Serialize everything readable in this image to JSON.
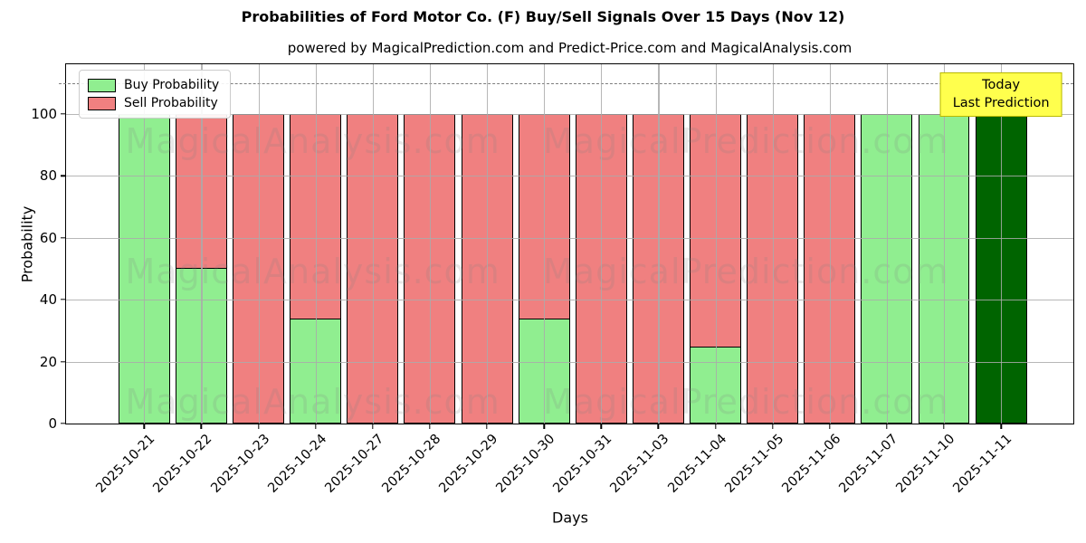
{
  "figure": {
    "title": "Probabilities of Ford Motor Co. (F) Buy/Sell Signals Over 15 Days (Nov 12)",
    "subtitle": "powered by MagicalPrediction.com and Predict-Price.com and MagicalAnalysis.com"
  },
  "legend": {
    "items": [
      {
        "label": "Buy Probability",
        "color": "#90ee90"
      },
      {
        "label": "Sell Probability",
        "color": "#f08080"
      }
    ]
  },
  "annotation_box": {
    "line1": "Today",
    "line2": "Last Prediction"
  },
  "watermarks": {
    "left_text": "MagicalAnalysis.com",
    "right_text": "MagicalPrediction.com"
  },
  "colors": {
    "buy": "#90ee90",
    "sell": "#f08080",
    "today_bar": "#006400",
    "grid": "#aaaaaa",
    "dashed_line": "#7d7d7d",
    "annotation_bg": "#ffff4d",
    "annotation_border": "#b9b900",
    "bar_edge": "#000000"
  },
  "chart_data": {
    "type": "bar",
    "stacked": true,
    "title": "Probabilities of Ford Motor Co. (F) Buy/Sell Signals Over 15 Days (Nov 12)",
    "subtitle": "powered by MagicalPrediction.com and Predict-Price.com and MagicalAnalysis.com",
    "xlabel": "Days",
    "ylabel": "Probability",
    "ylim": [
      0,
      116
    ],
    "yticks": [
      0,
      20,
      40,
      60,
      80,
      100
    ],
    "dashed_hline": 110,
    "grid": true,
    "legend_position": "upper-left",
    "categories": [
      "2025-10-21",
      "2025-10-22",
      "2025-10-23",
      "2025-10-24",
      "2025-10-27",
      "2025-10-28",
      "2025-10-29",
      "2025-10-30",
      "2025-10-31",
      "2025-11-03",
      "2025-11-04",
      "2025-11-05",
      "2025-11-06",
      "2025-11-07",
      "2025-11-10",
      "2025-11-11"
    ],
    "series": [
      {
        "name": "Buy Probability",
        "color_key": "buy",
        "values": [
          100,
          50,
          0,
          33.5,
          0,
          0,
          0,
          33.5,
          0,
          0,
          24.5,
          0,
          0,
          100,
          100,
          100
        ]
      },
      {
        "name": "Sell Probability",
        "color_key": "sell",
        "values": [
          0,
          50,
          100,
          66.5,
          100,
          100,
          100,
          66.5,
          100,
          100,
          75.5,
          100,
          100,
          0,
          0,
          0
        ]
      }
    ],
    "today_index": 15,
    "today_note": "Today / Last Prediction"
  }
}
